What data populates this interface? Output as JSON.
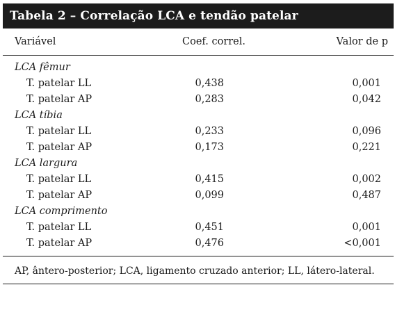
{
  "table": {
    "title": "Tabela 2 – Correlação LCA e tendão patelar",
    "headers": {
      "variable": "Variável",
      "coef": "Coef. correl.",
      "p": "Valor de p"
    },
    "groups": [
      {
        "label": "LCA fêmur",
        "rows": [
          {
            "label": "T. patelar LL",
            "coef": "0,438",
            "p": "0,001"
          },
          {
            "label": "T. patelar AP",
            "coef": "0,283",
            "p": "0,042"
          }
        ]
      },
      {
        "label": "LCA tíbia",
        "rows": [
          {
            "label": "T. patelar LL",
            "coef": "0,233",
            "p": "0,096"
          },
          {
            "label": "T. patelar AP",
            "coef": "0,173",
            "p": "0,221"
          }
        ]
      },
      {
        "label": "LCA largura",
        "rows": [
          {
            "label": "T. patelar LL",
            "coef": "0,415",
            "p": "0,002"
          },
          {
            "label": "T. patelar AP",
            "coef": "0,099",
            "p": "0,487"
          }
        ]
      },
      {
        "label": "LCA comprimento",
        "rows": [
          {
            "label": "T. patelar LL",
            "coef": "0,451",
            "p": "0,001"
          },
          {
            "label": "T. patelar AP",
            "coef": "0,476",
            "p": "<0,001"
          }
        ]
      }
    ],
    "footnote": "AP, ântero-posterior; LCA, ligamento cruzado anterior; LL, látero-lateral."
  }
}
